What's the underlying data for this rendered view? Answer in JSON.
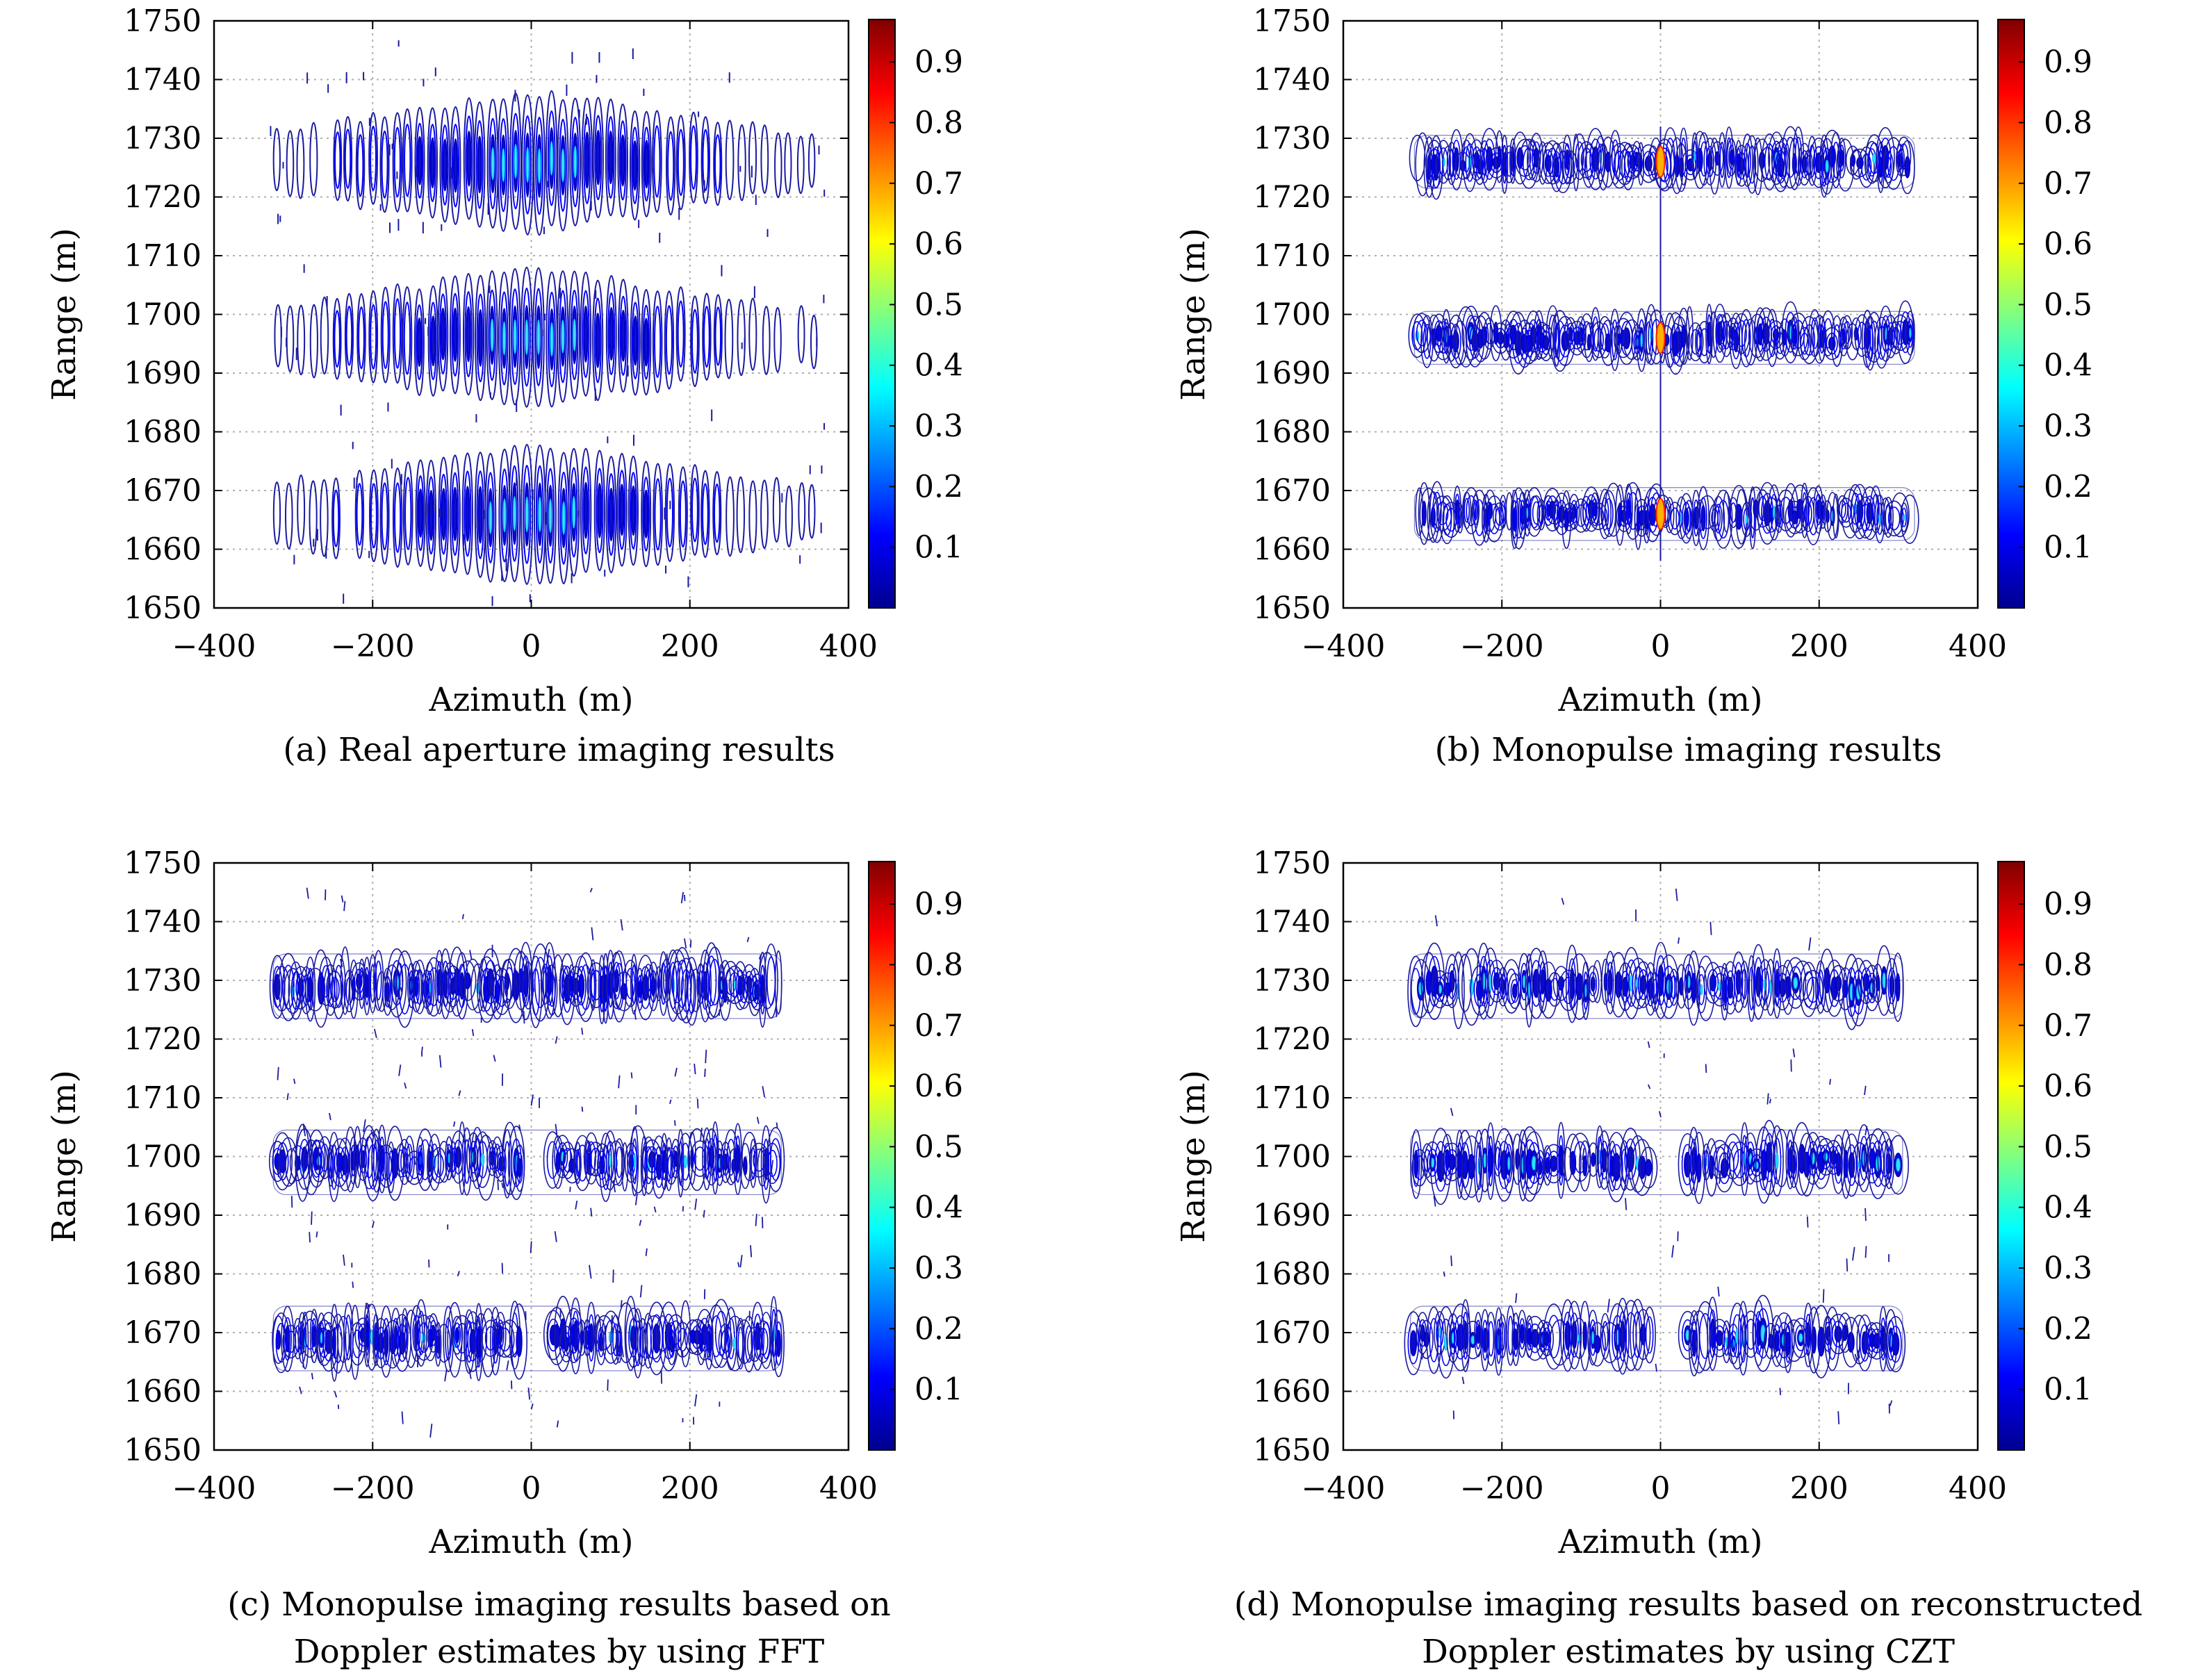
{
  "colormap": [
    "#00008f",
    "#0000ff",
    "#0080ff",
    "#00ffff",
    "#80ff80",
    "#ffff00",
    "#ff8000",
    "#ff0000",
    "#800000"
  ],
  "contour_color": "#1a1aa0",
  "chart_data": [
    {
      "type": "heatmap",
      "panel": "a",
      "caption": [
        "(a) Real aperture imaging results"
      ],
      "xlabel": "Azimuth (m)",
      "ylabel": "Range (m)",
      "xlim": [
        -400,
        400
      ],
      "ylim": [
        1650,
        1750
      ],
      "xticks": [
        "−400",
        "−200",
        "0",
        "200",
        "400"
      ],
      "yticks": [
        "1650",
        "1660",
        "1670",
        "1680",
        "1690",
        "1700",
        "1710",
        "1720",
        "1730",
        "1740",
        "1750"
      ],
      "colorbar_ticks": [
        "0.1",
        "0.2",
        "0.3",
        "0.4",
        "0.5",
        "0.6",
        "0.7",
        "0.8",
        "0.9"
      ],
      "colorbar_range": [
        0,
        1
      ],
      "grid": true,
      "pattern": "real",
      "bands": [
        1726,
        1696,
        1666
      ],
      "extent": [
        -330,
        370
      ]
    },
    {
      "type": "heatmap",
      "panel": "b",
      "caption": [
        "(b) Monopulse imaging results"
      ],
      "xlabel": "Azimuth (m)",
      "ylabel": "Range (m)",
      "xlim": [
        -400,
        400
      ],
      "ylim": [
        1650,
        1750
      ],
      "xticks": [
        "−400",
        "−200",
        "0",
        "200",
        "400"
      ],
      "yticks": [
        "1650",
        "1660",
        "1670",
        "1680",
        "1690",
        "1700",
        "1710",
        "1720",
        "1730",
        "1740",
        "1750"
      ],
      "colorbar_ticks": [
        "0.1",
        "0.2",
        "0.3",
        "0.4",
        "0.5",
        "0.6",
        "0.7",
        "0.8",
        "0.9"
      ],
      "colorbar_range": [
        0,
        1
      ],
      "grid": true,
      "pattern": "mono",
      "bands": [
        1726,
        1696,
        1666
      ],
      "extent": [
        -305,
        315
      ]
    },
    {
      "type": "heatmap",
      "panel": "c",
      "caption": [
        "(c) Monopulse imaging results based on",
        "Doppler estimates by using FFT"
      ],
      "xlabel": "Azimuth (m)",
      "ylabel": "Range (m)",
      "xlim": [
        -400,
        400
      ],
      "ylim": [
        1650,
        1750
      ],
      "xticks": [
        "−400",
        "−200",
        "0",
        "200",
        "400"
      ],
      "yticks": [
        "1650",
        "1660",
        "1670",
        "1680",
        "1690",
        "1700",
        "1710",
        "1720",
        "1730",
        "1740",
        "1750"
      ],
      "colorbar_ticks": [
        "0.1",
        "0.2",
        "0.3",
        "0.4",
        "0.5",
        "0.6",
        "0.7",
        "0.8",
        "0.9"
      ],
      "colorbar_range": [
        0,
        1
      ],
      "grid": true,
      "pattern": "fft",
      "bands": [
        1729,
        1699,
        1669
      ],
      "extent": [
        -320,
        310
      ]
    },
    {
      "type": "heatmap",
      "panel": "d",
      "caption": [
        "(d) Monopulse imaging results based on reconstructed",
        "Doppler estimates by using CZT"
      ],
      "xlabel": "Azimuth (m)",
      "ylabel": "Range (m)",
      "xlim": [
        -400,
        400
      ],
      "ylim": [
        1650,
        1750
      ],
      "xticks": [
        "−400",
        "−200",
        "0",
        "200",
        "400"
      ],
      "yticks": [
        "1650",
        "1660",
        "1670",
        "1680",
        "1690",
        "1700",
        "1710",
        "1720",
        "1730",
        "1740",
        "1750"
      ],
      "colorbar_ticks": [
        "0.1",
        "0.2",
        "0.3",
        "0.4",
        "0.5",
        "0.6",
        "0.7",
        "0.8",
        "0.9"
      ],
      "colorbar_range": [
        0,
        1
      ],
      "grid": true,
      "pattern": "czt",
      "bands": [
        1729,
        1699,
        1669
      ],
      "extent": [
        -310,
        300
      ]
    }
  ]
}
